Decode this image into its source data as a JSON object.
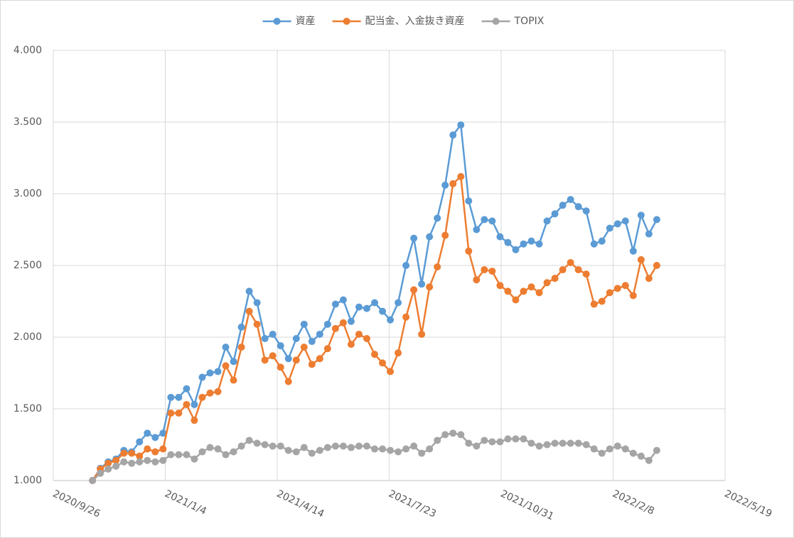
{
  "chart_data": {
    "type": "line",
    "x": [
      "2020/10/31",
      "2020/11/7",
      "2020/11/14",
      "2020/11/21",
      "2020/11/28",
      "2020/12/5",
      "2020/12/12",
      "2020/12/19",
      "2020/12/26",
      "2021/1/2",
      "2021/1/9",
      "2021/1/16",
      "2021/1/23",
      "2021/1/30",
      "2021/2/6",
      "2021/2/13",
      "2021/2/20",
      "2021/2/27",
      "2021/3/6",
      "2021/3/13",
      "2021/3/20",
      "2021/3/27",
      "2021/4/3",
      "2021/4/10",
      "2021/4/17",
      "2021/4/24",
      "2021/5/1",
      "2021/5/8",
      "2021/5/15",
      "2021/5/22",
      "2021/5/29",
      "2021/6/5",
      "2021/6/12",
      "2021/6/19",
      "2021/6/26",
      "2021/7/3",
      "2021/7/10",
      "2021/7/17",
      "2021/7/24",
      "2021/7/31",
      "2021/8/7",
      "2021/8/14",
      "2021/8/21",
      "2021/8/28",
      "2021/9/4",
      "2021/9/11",
      "2021/9/18",
      "2021/9/25",
      "2021/10/2",
      "2021/10/9",
      "2021/10/16",
      "2021/10/23",
      "2021/10/30",
      "2021/11/6",
      "2021/11/13",
      "2021/11/20",
      "2021/11/27",
      "2021/12/4",
      "2021/12/11",
      "2021/12/18",
      "2021/12/25",
      "2022/1/1",
      "2022/1/8",
      "2022/1/15",
      "2022/1/22",
      "2022/1/29",
      "2022/2/5",
      "2022/2/12",
      "2022/2/19",
      "2022/2/26",
      "2022/3/5",
      "2022/3/12",
      "2022/3/19"
    ],
    "series": [
      {
        "name": "資産",
        "color": "#5b9bd5",
        "values": [
          1.0,
          1.085,
          1.13,
          1.15,
          1.21,
          1.2,
          1.27,
          1.33,
          1.3,
          1.33,
          1.58,
          1.58,
          1.64,
          1.53,
          1.72,
          1.75,
          1.76,
          1.93,
          1.83,
          2.07,
          2.32,
          2.24,
          1.99,
          2.02,
          1.94,
          1.85,
          1.99,
          2.09,
          1.97,
          2.02,
          2.09,
          2.23,
          2.26,
          2.11,
          2.21,
          2.2,
          2.24,
          2.18,
          2.12,
          2.24,
          2.5,
          2.69,
          2.37,
          2.7,
          2.83,
          3.06,
          3.41,
          3.48,
          2.95,
          2.75,
          2.82,
          2.81,
          2.7,
          2.66,
          2.61,
          2.65,
          2.67,
          2.65,
          2.81,
          2.86,
          2.92,
          2.96,
          2.91,
          2.88,
          2.65,
          2.67,
          2.76,
          2.79,
          2.81,
          2.6,
          2.85,
          2.72,
          2.82
        ]
      },
      {
        "name": "配当金、入金抜き資産",
        "color": "#ed7d31",
        "values": [
          1.0,
          1.08,
          1.12,
          1.14,
          1.19,
          1.19,
          1.17,
          1.22,
          1.2,
          1.22,
          1.47,
          1.47,
          1.53,
          1.42,
          1.58,
          1.61,
          1.62,
          1.8,
          1.7,
          1.93,
          2.18,
          2.09,
          1.84,
          1.87,
          1.79,
          1.69,
          1.84,
          1.93,
          1.81,
          1.85,
          1.92,
          2.06,
          2.1,
          1.95,
          2.02,
          1.99,
          1.88,
          1.82,
          1.76,
          1.89,
          2.14,
          2.33,
          2.02,
          2.35,
          2.49,
          2.71,
          3.07,
          3.12,
          2.6,
          2.4,
          2.47,
          2.46,
          2.36,
          2.32,
          2.26,
          2.32,
          2.35,
          2.31,
          2.38,
          2.41,
          2.47,
          2.52,
          2.47,
          2.44,
          2.23,
          2.25,
          2.31,
          2.34,
          2.36,
          2.29,
          2.54,
          2.41,
          2.5
        ]
      },
      {
        "name": "TOPIX",
        "color": "#a5a5a5",
        "values": [
          1.0,
          1.05,
          1.08,
          1.1,
          1.13,
          1.12,
          1.13,
          1.14,
          1.13,
          1.14,
          1.18,
          1.18,
          1.18,
          1.15,
          1.2,
          1.23,
          1.22,
          1.18,
          1.2,
          1.24,
          1.28,
          1.26,
          1.25,
          1.24,
          1.24,
          1.21,
          1.2,
          1.23,
          1.19,
          1.21,
          1.23,
          1.24,
          1.24,
          1.23,
          1.24,
          1.24,
          1.22,
          1.22,
          1.21,
          1.2,
          1.22,
          1.24,
          1.19,
          1.22,
          1.28,
          1.32,
          1.33,
          1.32,
          1.26,
          1.24,
          1.28,
          1.27,
          1.27,
          1.29,
          1.29,
          1.29,
          1.26,
          1.24,
          1.25,
          1.26,
          1.26,
          1.26,
          1.26,
          1.25,
          1.22,
          1.19,
          1.22,
          1.24,
          1.22,
          1.19,
          1.17,
          1.14,
          1.21
        ]
      }
    ],
    "xlim": [
      "2020/9/26",
      "2022/5/19"
    ],
    "xticks": [
      "2020/9/26",
      "2021/1/4",
      "2021/4/14",
      "2021/7/23",
      "2021/10/31",
      "2022/2/8",
      "2022/5/19"
    ],
    "ylim": [
      1,
      4
    ],
    "yticks": [
      {
        "value": 1,
        "label": "1.000"
      },
      {
        "value": 1.5,
        "label": "1.500"
      },
      {
        "value": 2,
        "label": "2.000"
      },
      {
        "value": 2.5,
        "label": "2.500"
      },
      {
        "value": 3,
        "label": "3.000"
      },
      {
        "value": 3.5,
        "label": "3.500"
      },
      {
        "value": 4,
        "label": "4.000"
      }
    ],
    "grid": true,
    "legend": "top"
  }
}
